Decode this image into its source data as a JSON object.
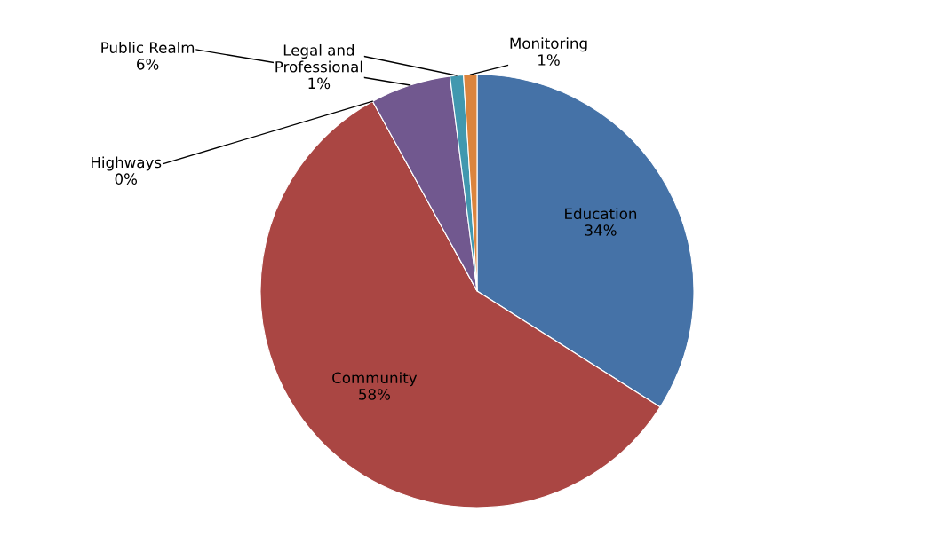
{
  "chart_data": {
    "type": "pie",
    "categories": [
      "Education",
      "Community",
      "Highways",
      "Public Realm",
      "Legal and Professional",
      "Monitoring"
    ],
    "values": [
      34,
      58,
      0,
      6,
      1,
      1
    ],
    "colors": [
      "#4572a7",
      "#aa4643",
      "#89a54e",
      "#71588f",
      "#4198af",
      "#db843d"
    ],
    "value_labels": [
      "34%",
      "58%",
      "0%",
      "6%",
      "1%",
      "1%"
    ]
  }
}
